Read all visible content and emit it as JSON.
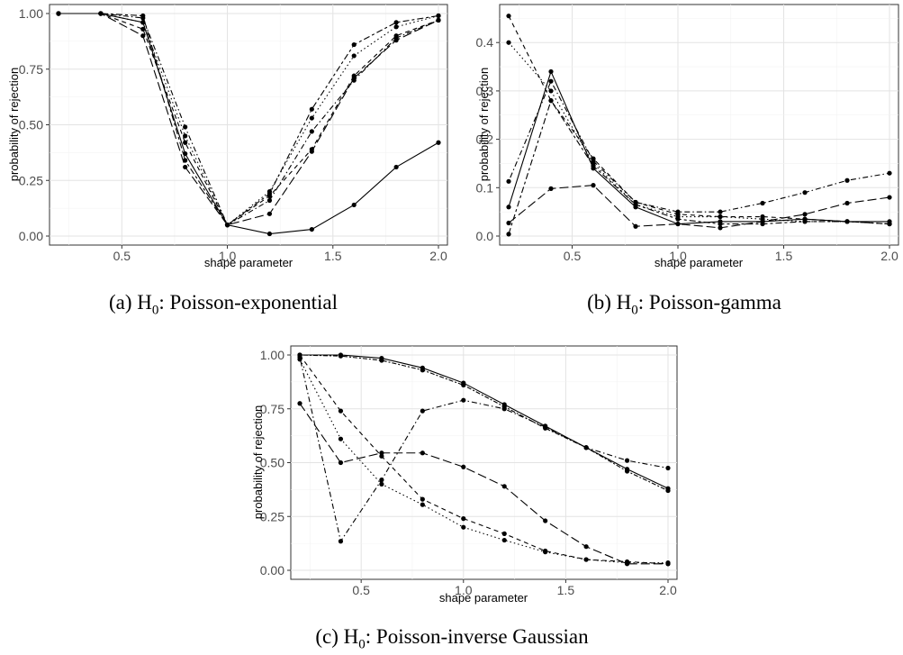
{
  "figure": {
    "captions": [
      {
        "label": "(a) H",
        "sub": "0",
        "rest": ": Poisson-exponential"
      },
      {
        "label": "(b) H",
        "sub": "0",
        "rest": ": Poisson-gamma"
      },
      {
        "label": "(c) H",
        "sub": "0",
        "rest": ": Poisson-inverse Gaussian"
      }
    ]
  },
  "chart_data": [
    {
      "type": "line",
      "xlabel": "shape parameter",
      "ylabel": "probability of rejection",
      "xlim": [
        0.2,
        2.0
      ],
      "ylim": [
        0,
        1
      ],
      "xticks": [
        0.5,
        1.0,
        1.5,
        2.0
      ],
      "xtick_labels": [
        "0.5",
        "1.0",
        "1.5",
        "2.0"
      ],
      "yticks": [
        0,
        0.25,
        0.5,
        0.75,
        1.0
      ],
      "ytick_labels": [
        "0.00",
        "0.25",
        "0.50",
        "0.75",
        "1.00"
      ],
      "grid": true,
      "x": [
        0.2,
        0.4,
        0.6,
        0.8,
        1.0,
        1.2,
        1.4,
        1.6,
        1.8,
        2.0
      ],
      "series": [
        {
          "dash": "solid",
          "values": [
            1.0,
            1.0,
            0.96,
            0.37,
            0.05,
            0.01,
            0.03,
            0.14,
            0.31,
            0.42
          ]
        },
        {
          "dash": "dashed",
          "values": [
            1.0,
            1.0,
            0.93,
            0.42,
            0.05,
            0.18,
            0.39,
            0.72,
            0.9,
            0.97
          ]
        },
        {
          "dash": "dotted",
          "values": [
            1.0,
            1.0,
            0.96,
            0.45,
            0.05,
            0.2,
            0.53,
            0.81,
            0.94,
            0.99
          ]
        },
        {
          "dash": "dotdash",
          "values": [
            1.0,
            1.0,
            0.98,
            0.49,
            0.05,
            0.16,
            0.47,
            0.7,
            0.89,
            0.97
          ]
        },
        {
          "dash": "longdash",
          "values": [
            1.0,
            1.0,
            0.9,
            0.31,
            0.05,
            0.1,
            0.38,
            0.71,
            0.88,
            0.97
          ]
        },
        {
          "dash": "twodash",
          "values": [
            1.0,
            1.0,
            0.99,
            0.34,
            0.05,
            0.19,
            0.57,
            0.86,
            0.96,
            0.99
          ]
        }
      ]
    },
    {
      "type": "line",
      "xlabel": "shape parameter",
      "ylabel": "probability of rejection",
      "xlim": [
        0.2,
        2.0
      ],
      "ylim": [
        0,
        0.46
      ],
      "xticks": [
        0.5,
        1.0,
        1.5,
        2.0
      ],
      "xtick_labels": [
        "0.5",
        "1.0",
        "1.5",
        "2.0"
      ],
      "yticks": [
        0,
        0.1,
        0.2,
        0.3,
        0.4
      ],
      "ytick_labels": [
        "0.0",
        "0.1",
        "0.2",
        "0.3",
        "0.4"
      ],
      "grid": true,
      "x": [
        0.2,
        0.4,
        0.6,
        0.8,
        1.0,
        1.2,
        1.4,
        1.6,
        1.8,
        2.0
      ],
      "series": [
        {
          "dash": "solid",
          "values": [
            0.06,
            0.34,
            0.14,
            0.06,
            0.025,
            0.03,
            0.03,
            0.035,
            0.03,
            0.03
          ]
        },
        {
          "dash": "dashed",
          "values": [
            0.455,
            0.28,
            0.16,
            0.07,
            0.045,
            0.04,
            0.04,
            0.035,
            0.03,
            0.025
          ]
        },
        {
          "dash": "dotted",
          "values": [
            0.4,
            0.3,
            0.15,
            0.065,
            0.04,
            0.04,
            0.035,
            0.03,
            0.03,
            0.025
          ]
        },
        {
          "dash": "dotdash",
          "values": [
            0.113,
            0.32,
            0.155,
            0.07,
            0.05,
            0.05,
            0.068,
            0.09,
            0.115,
            0.13
          ]
        },
        {
          "dash": "longdash",
          "values": [
            0.027,
            0.098,
            0.105,
            0.02,
            0.025,
            0.017,
            0.03,
            0.045,
            0.068,
            0.08
          ]
        },
        {
          "dash": "twodash",
          "values": [
            0.004,
            0.28,
            0.145,
            0.065,
            0.035,
            0.025,
            0.025,
            0.03,
            0.03,
            0.025
          ]
        }
      ]
    },
    {
      "type": "line",
      "xlabel": "shape parameter",
      "ylabel": "probability of rejection",
      "xlim": [
        0.2,
        2.0
      ],
      "ylim": [
        0,
        1
      ],
      "xticks": [
        0.5,
        1.0,
        1.5,
        2.0
      ],
      "xtick_labels": [
        "0.5",
        "1.0",
        "1.5",
        "2.0"
      ],
      "yticks": [
        0,
        0.25,
        0.5,
        0.75,
        1.0
      ],
      "ytick_labels": [
        "0.00",
        "0.25",
        "0.50",
        "0.75",
        "1.00"
      ],
      "grid": true,
      "x": [
        0.2,
        0.4,
        0.6,
        0.8,
        1.0,
        1.2,
        1.4,
        1.6,
        1.8,
        2.0
      ],
      "series": [
        {
          "dash": "solid",
          "values": [
            1.0,
            1.0,
            0.985,
            0.94,
            0.87,
            0.77,
            0.67,
            0.57,
            0.47,
            0.38
          ]
        },
        {
          "dash": "dotdash2",
          "values": [
            1.0,
            0.995,
            0.975,
            0.93,
            0.86,
            0.76,
            0.66,
            0.57,
            0.46,
            0.37
          ]
        },
        {
          "dash": "dashed",
          "values": [
            1.0,
            0.74,
            0.53,
            0.33,
            0.24,
            0.17,
            0.09,
            0.05,
            0.04,
            0.03
          ]
        },
        {
          "dash": "dotted",
          "values": [
            0.98,
            0.61,
            0.4,
            0.305,
            0.2,
            0.14,
            0.085,
            0.05,
            0.035,
            0.035
          ]
        },
        {
          "dash": "longdash",
          "values": [
            0.775,
            0.5,
            0.545,
            0.545,
            0.48,
            0.39,
            0.23,
            0.11,
            0.03,
            0.03
          ]
        },
        {
          "dash": "dotdash",
          "values": [
            0.99,
            0.135,
            0.42,
            0.74,
            0.79,
            0.75,
            0.665,
            0.57,
            0.51,
            0.475
          ]
        }
      ]
    }
  ]
}
